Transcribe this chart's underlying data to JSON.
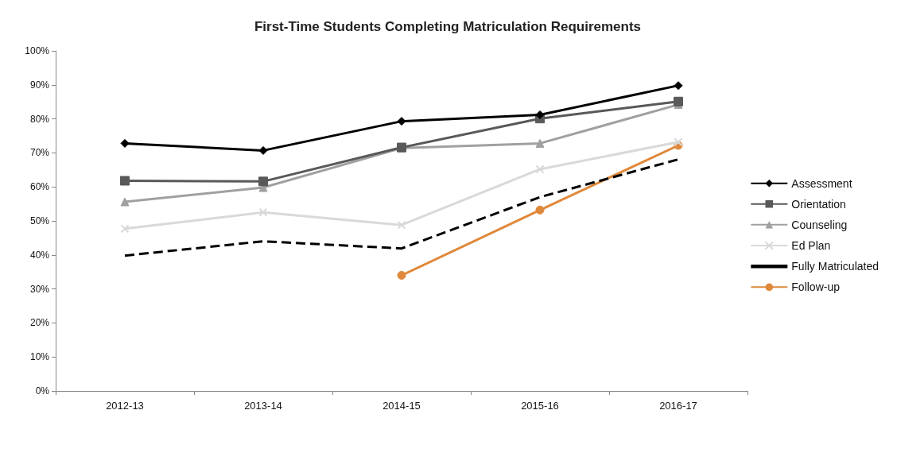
{
  "chart_data": {
    "type": "line",
    "title": "First-Time Students Completing Matriculation Requirements",
    "categories": [
      "2012-13",
      "2013-14",
      "2014-15",
      "2015-16",
      "2016-17"
    ],
    "series": [
      {
        "name": "Assessment",
        "color": "#000000",
        "marker": "diamond",
        "values": [
          72.8,
          70.7,
          79.3,
          81.2,
          89.8
        ]
      },
      {
        "name": "Orientation",
        "color": "#595959",
        "marker": "square",
        "values": [
          61.8,
          61.6,
          71.6,
          80.1,
          85.1
        ]
      },
      {
        "name": "Counseling",
        "color": "#a0a0a0",
        "marker": "triangle",
        "values": [
          55.6,
          59.8,
          71.4,
          72.8,
          84.2
        ]
      },
      {
        "name": "Ed Plan",
        "color": "#d9d9d9",
        "marker": "cross",
        "values": [
          47.7,
          52.5,
          48.8,
          65.2,
          73.2
        ]
      },
      {
        "name": "Fully Matriculated",
        "color": "#000000",
        "marker": "none",
        "line_style": "dashed",
        "values": [
          39.8,
          44.0,
          41.9,
          57.0,
          68.1
        ]
      },
      {
        "name": "Follow-up",
        "color": "#e0883a",
        "marker": "circle",
        "values": [
          null,
          null,
          34.0,
          53.2,
          72.2
        ]
      }
    ],
    "ylim": [
      0,
      100
    ],
    "yticks": [
      {
        "value": 0,
        "label": "0%"
      },
      {
        "value": 10,
        "label": "10%"
      },
      {
        "value": 20,
        "label": "20%"
      },
      {
        "value": 30,
        "label": "30%"
      },
      {
        "value": 40,
        "label": "40%"
      },
      {
        "value": 50,
        "label": "50%"
      },
      {
        "value": 60,
        "label": "60%"
      },
      {
        "value": 70,
        "label": "70%"
      },
      {
        "value": 80,
        "label": "80%"
      },
      {
        "value": 90,
        "label": "90%"
      },
      {
        "value": 100,
        "label": "100%"
      }
    ],
    "grid": false,
    "legend": "right",
    "line_style": "solid"
  }
}
